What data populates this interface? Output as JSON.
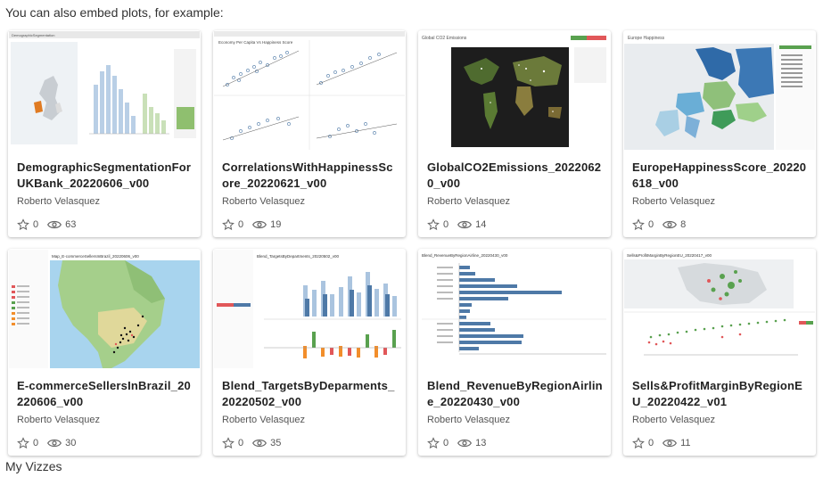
{
  "intro_text": "You can also embed plots, for example:",
  "footer_text": "My Vizzes",
  "cards": [
    {
      "title": "DemographicSegmentationForUKBank_20220606_v00",
      "author": "Roberto Velasquez",
      "favorites": "0",
      "views": "63",
      "thumb": "demographic",
      "thumb_text": "DemographicSegmentation"
    },
    {
      "title": "CorrelationsWithHappinessScore_20220621_v00",
      "author": "Roberto Velasquez",
      "favorites": "0",
      "views": "19",
      "thumb": "scatter",
      "thumb_text": "Economy Per Capita Vs Happiness Score"
    },
    {
      "title": "GlobalCO2Emissions_20220620_v00",
      "author": "Roberto Velasquez",
      "favorites": "0",
      "views": "14",
      "thumb": "worldmap",
      "thumb_text": "Global CO2 Emissions"
    },
    {
      "title": "EuropeHappinessScore_20220618_v00",
      "author": "Roberto Velasquez",
      "favorites": "0",
      "views": "8",
      "thumb": "europe",
      "thumb_text": "Europe Happiness"
    },
    {
      "title": "E-commerceSellersInBrazil_20220606_v00",
      "author": "Roberto Velasquez",
      "favorites": "0",
      "views": "30",
      "thumb": "brazil",
      "thumb_text": "Map_E-commerceSellersInBrazil_20220606_v00"
    },
    {
      "title": "Blend_TargetsByDeparments_20220502_v00",
      "author": "Roberto Velasquez",
      "favorites": "0",
      "views": "35",
      "thumb": "bars",
      "thumb_text": "Blend_TargetsByDepartments_20220502_v00"
    },
    {
      "title": "Blend_RevenueByRegionAirline_20220430_v00",
      "author": "Roberto Velasquez",
      "favorites": "0",
      "views": "13",
      "thumb": "hbars",
      "thumb_text": "Blend_RevenueByRegionAirline_20220430_v00"
    },
    {
      "title": "Sells&ProfitMarginByRegionEU_20220422_v01",
      "author": "Roberto Velasquez",
      "favorites": "0",
      "views": "11",
      "thumb": "sells",
      "thumb_text": "Sells&ProfitMarginByRegionEU_20220417_v00"
    }
  ],
  "colors": {
    "accent_blue": "#4e79a7",
    "orange": "#f28e2b",
    "green": "#59a14f",
    "red": "#e15759"
  },
  "icons": {
    "favorite": "star-icon",
    "views": "eye-icon"
  }
}
